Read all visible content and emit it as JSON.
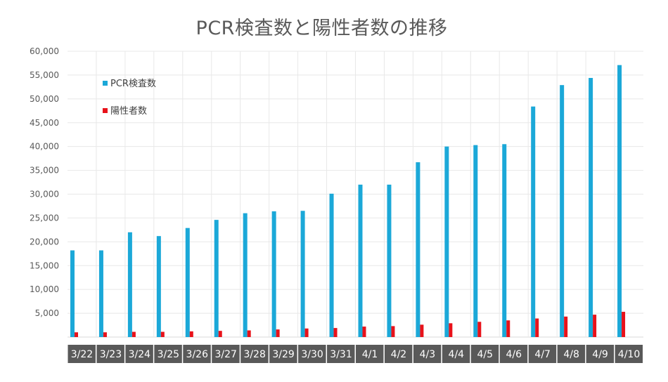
{
  "chart_data": {
    "type": "bar",
    "title": "PCR検査数と陽性者数の推移",
    "xlabel": "",
    "ylabel": "",
    "ylim": [
      0,
      60000
    ],
    "yticks": [
      5000,
      10000,
      15000,
      20000,
      25000,
      30000,
      35000,
      40000,
      45000,
      50000,
      55000,
      60000
    ],
    "ytick_labels": [
      "5,000",
      "10,000",
      "15,000",
      "20,000",
      "25,000",
      "30,000",
      "35,000",
      "40,000",
      "45,000",
      "50,000",
      "55,000",
      "60,000"
    ],
    "categories": [
      "3/22",
      "3/23",
      "3/24",
      "3/25",
      "3/26",
      "3/27",
      "3/28",
      "3/29",
      "3/30",
      "3/31",
      "4/1",
      "4/2",
      "4/3",
      "4/4",
      "4/5",
      "4/6",
      "4/7",
      "4/8",
      "4/9",
      "4/10"
    ],
    "series": [
      {
        "name": "PCR検査数",
        "color": "#1ba8d8",
        "values": [
          18200,
          18200,
          22000,
          21200,
          22900,
          24600,
          26000,
          26400,
          26500,
          30100,
          32000,
          32000,
          36700,
          40000,
          40300,
          40500,
          48400,
          52900,
          54400,
          57100
        ]
      },
      {
        "name": "陽性者数",
        "color": "#e8121a",
        "values": [
          1000,
          1000,
          1100,
          1100,
          1200,
          1300,
          1400,
          1600,
          1800,
          1900,
          2200,
          2300,
          2600,
          2900,
          3200,
          3500,
          3900,
          4300,
          4700,
          5300
        ]
      }
    ],
    "grid": true,
    "legend_position": "top-left",
    "x_axis_band_color": "#595959"
  }
}
